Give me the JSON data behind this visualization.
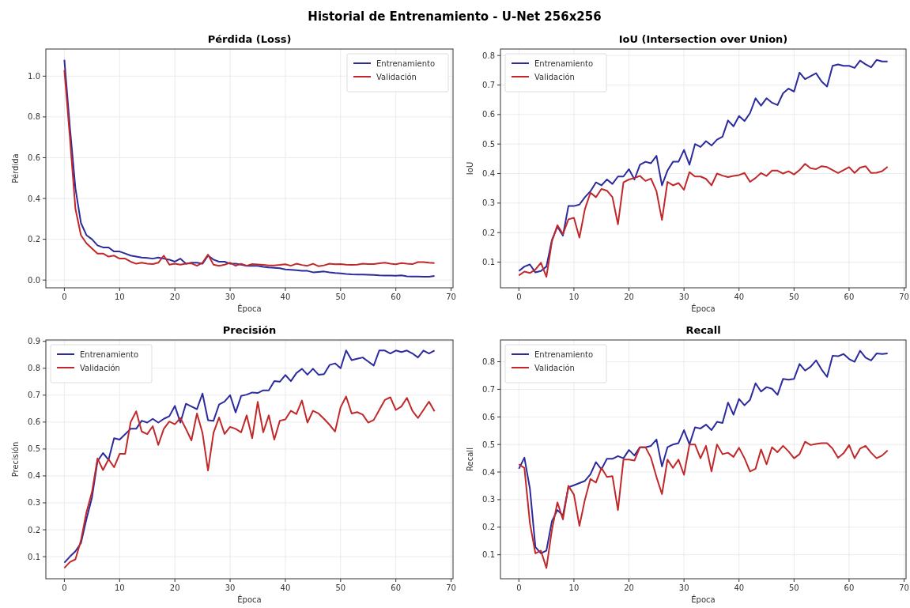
{
  "chart_data": [
    {
      "type": "line",
      "title": "Pérdida (Loss)",
      "annotations": [
        "Historial de Entrenamiento - U-Net 256x256"
      ],
      "xlabel": "Época",
      "ylabel": "Pérdida",
      "x": [
        0,
        1,
        2,
        3,
        4,
        5,
        6,
        7,
        8,
        9,
        10,
        11,
        12,
        13,
        14,
        15,
        16,
        17,
        18,
        19,
        20,
        21,
        22,
        23,
        24,
        25,
        26,
        27,
        28,
        29,
        30,
        31,
        32,
        33,
        34,
        35,
        36,
        37,
        38,
        39,
        40,
        41,
        42,
        43,
        44,
        45,
        46,
        47,
        48,
        49,
        50,
        51,
        52,
        53,
        54,
        55,
        56,
        57,
        58,
        59,
        60,
        61,
        62,
        63,
        64,
        65,
        66,
        67
      ],
      "xlim": [
        -3.35,
        70.35
      ],
      "xticks": [
        0,
        10,
        20,
        30,
        40,
        50,
        60,
        70
      ],
      "ylim": [
        -0.038,
        1.133
      ],
      "yticks": [
        {
          "value": 0,
          "label": "0.0"
        },
        0.2,
        0.4,
        0.6,
        0.8,
        {
          "value": 1,
          "label": "1.0"
        }
      ],
      "grid": true,
      "legend": "top right",
      "series": [
        {
          "name": "Entrenamiento",
          "color": "#2b2b9e",
          "values": [
            1.08,
            0.75,
            0.45,
            0.28,
            0.22,
            0.2,
            0.17,
            0.16,
            0.16,
            0.14,
            0.14,
            0.13,
            0.12,
            0.115,
            0.11,
            0.108,
            0.105,
            0.11,
            0.105,
            0.1,
            0.09,
            0.105,
            0.08,
            0.085,
            0.085,
            0.08,
            0.12,
            0.1,
            0.09,
            0.09,
            0.08,
            0.08,
            0.075,
            0.07,
            0.07,
            0.07,
            0.065,
            0.062,
            0.06,
            0.058,
            0.052,
            0.05,
            0.048,
            0.045,
            0.045,
            0.038,
            0.04,
            0.042,
            0.038,
            0.035,
            0.033,
            0.03,
            0.028,
            0.027,
            0.027,
            0.026,
            0.025,
            0.023,
            0.022,
            0.022,
            0.021,
            0.023,
            0.018,
            0.017,
            0.017,
            0.016,
            0.016,
            0.02
          ]
        },
        {
          "name": "Validación",
          "color": "#c0282a",
          "values": [
            1.03,
            0.7,
            0.35,
            0.22,
            0.18,
            0.155,
            0.13,
            0.13,
            0.115,
            0.12,
            0.105,
            0.105,
            0.09,
            0.08,
            0.085,
            0.08,
            0.078,
            0.085,
            0.12,
            0.075,
            0.08,
            0.075,
            0.08,
            0.082,
            0.07,
            0.085,
            0.125,
            0.075,
            0.07,
            0.075,
            0.085,
            0.07,
            0.08,
            0.07,
            0.078,
            0.076,
            0.074,
            0.072,
            0.072,
            0.074,
            0.077,
            0.07,
            0.08,
            0.074,
            0.07,
            0.08,
            0.068,
            0.072,
            0.08,
            0.077,
            0.078,
            0.075,
            0.074,
            0.075,
            0.08,
            0.078,
            0.078,
            0.082,
            0.085,
            0.08,
            0.077,
            0.083,
            0.08,
            0.078,
            0.088,
            0.088,
            0.085,
            0.083
          ]
        }
      ]
    },
    {
      "type": "line",
      "title": "IoU (Intersection over Union)",
      "xlabel": "Época",
      "ylabel": "IoU",
      "x": [
        0,
        1,
        2,
        3,
        4,
        5,
        6,
        7,
        8,
        9,
        10,
        11,
        12,
        13,
        14,
        15,
        16,
        17,
        18,
        19,
        20,
        21,
        22,
        23,
        24,
        25,
        26,
        27,
        28,
        29,
        30,
        31,
        32,
        33,
        34,
        35,
        36,
        37,
        38,
        39,
        40,
        41,
        42,
        43,
        44,
        45,
        46,
        47,
        48,
        49,
        50,
        51,
        52,
        53,
        54,
        55,
        56,
        57,
        58,
        59,
        60,
        61,
        62,
        63,
        64,
        65,
        66,
        67
      ],
      "xlim": [
        -3.35,
        70.35
      ],
      "xticks": [
        0,
        10,
        20,
        30,
        40,
        50,
        60,
        70
      ],
      "ylim": [
        0.013,
        0.822
      ],
      "yticks": [
        0.1,
        0.2,
        0.3,
        0.4,
        0.5,
        0.6,
        0.7,
        0.8
      ],
      "grid": true,
      "legend": "top left",
      "series": [
        {
          "name": "Entrenamiento",
          "color": "#2b2b9e",
          "values": [
            0.07,
            0.085,
            0.092,
            0.065,
            0.07,
            0.085,
            0.175,
            0.22,
            0.19,
            0.29,
            0.29,
            0.295,
            0.32,
            0.34,
            0.37,
            0.36,
            0.38,
            0.365,
            0.39,
            0.39,
            0.415,
            0.38,
            0.43,
            0.44,
            0.435,
            0.46,
            0.36,
            0.41,
            0.44,
            0.44,
            0.48,
            0.43,
            0.5,
            0.49,
            0.51,
            0.495,
            0.515,
            0.525,
            0.58,
            0.56,
            0.595,
            0.578,
            0.605,
            0.655,
            0.63,
            0.655,
            0.64,
            0.632,
            0.672,
            0.688,
            0.678,
            0.742,
            0.72,
            0.73,
            0.74,
            0.712,
            0.695,
            0.765,
            0.77,
            0.765,
            0.765,
            0.758,
            0.783,
            0.77,
            0.76,
            0.785,
            0.78,
            0.78
          ]
        },
        {
          "name": "Validación",
          "color": "#c0282a",
          "values": [
            0.055,
            0.068,
            0.063,
            0.075,
            0.098,
            0.05,
            0.17,
            0.225,
            0.195,
            0.245,
            0.25,
            0.183,
            0.28,
            0.335,
            0.32,
            0.348,
            0.342,
            0.32,
            0.228,
            0.37,
            0.38,
            0.385,
            0.392,
            0.375,
            0.383,
            0.34,
            0.243,
            0.372,
            0.36,
            0.368,
            0.345,
            0.405,
            0.39,
            0.39,
            0.382,
            0.36,
            0.4,
            0.393,
            0.388,
            0.392,
            0.395,
            0.402,
            0.372,
            0.385,
            0.402,
            0.392,
            0.41,
            0.41,
            0.4,
            0.408,
            0.397,
            0.412,
            0.433,
            0.418,
            0.415,
            0.425,
            0.422,
            0.412,
            0.402,
            0.412,
            0.422,
            0.402,
            0.42,
            0.425,
            0.402,
            0.403,
            0.408,
            0.423
          ]
        }
      ]
    },
    {
      "type": "line",
      "title": "Precisión",
      "xlabel": "Época",
      "ylabel": "Precisión",
      "x": [
        0,
        1,
        2,
        3,
        4,
        5,
        6,
        7,
        8,
        9,
        10,
        11,
        12,
        13,
        14,
        15,
        16,
        17,
        18,
        19,
        20,
        21,
        22,
        23,
        24,
        25,
        26,
        27,
        28,
        29,
        30,
        31,
        32,
        33,
        34,
        35,
        36,
        37,
        38,
        39,
        40,
        41,
        42,
        43,
        44,
        45,
        46,
        47,
        48,
        49,
        50,
        51,
        52,
        53,
        54,
        55,
        56,
        57,
        58,
        59,
        60,
        61,
        62,
        63,
        64,
        65,
        66,
        67
      ],
      "xlim": [
        -3.35,
        70.35
      ],
      "xticks": [
        0,
        10,
        20,
        30,
        40,
        50,
        60,
        70
      ],
      "ylim": [
        0.018,
        0.905
      ],
      "yticks": [
        0.1,
        0.2,
        0.3,
        0.4,
        0.5,
        0.6,
        0.7,
        0.8,
        0.9
      ],
      "grid": true,
      "legend": "top left",
      "series": [
        {
          "name": "Entrenamiento",
          "color": "#2b2b9e",
          "values": [
            0.078,
            0.1,
            0.12,
            0.15,
            0.24,
            0.32,
            0.455,
            0.485,
            0.46,
            0.54,
            0.535,
            0.555,
            0.575,
            0.575,
            0.605,
            0.598,
            0.612,
            0.598,
            0.612,
            0.622,
            0.66,
            0.598,
            0.668,
            0.658,
            0.648,
            0.706,
            0.607,
            0.605,
            0.665,
            0.676,
            0.7,
            0.636,
            0.697,
            0.702,
            0.71,
            0.708,
            0.718,
            0.718,
            0.752,
            0.75,
            0.775,
            0.752,
            0.782,
            0.798,
            0.776,
            0.798,
            0.776,
            0.778,
            0.812,
            0.818,
            0.8,
            0.866,
            0.83,
            0.835,
            0.84,
            0.825,
            0.81,
            0.866,
            0.866,
            0.855,
            0.866,
            0.86,
            0.866,
            0.855,
            0.84,
            0.866,
            0.855,
            0.866
          ]
        },
        {
          "name": "Validación",
          "color": "#c0282a",
          "values": [
            0.058,
            0.08,
            0.09,
            0.16,
            0.265,
            0.34,
            0.465,
            0.422,
            0.462,
            0.432,
            0.482,
            0.482,
            0.6,
            0.64,
            0.565,
            0.555,
            0.585,
            0.515,
            0.575,
            0.602,
            0.592,
            0.615,
            0.575,
            0.532,
            0.632,
            0.56,
            0.42,
            0.56,
            0.617,
            0.556,
            0.582,
            0.575,
            0.562,
            0.625,
            0.54,
            0.675,
            0.562,
            0.625,
            0.535,
            0.605,
            0.61,
            0.642,
            0.63,
            0.68,
            0.598,
            0.642,
            0.632,
            0.612,
            0.59,
            0.565,
            0.655,
            0.695,
            0.632,
            0.637,
            0.628,
            0.598,
            0.608,
            0.645,
            0.682,
            0.692,
            0.645,
            0.658,
            0.69,
            0.642,
            0.615,
            0.645,
            0.676,
            0.64
          ]
        }
      ]
    },
    {
      "type": "line",
      "title": "Recall",
      "xlabel": "Época",
      "ylabel": "Recall",
      "x": [
        0,
        1,
        2,
        3,
        4,
        5,
        6,
        7,
        8,
        9,
        10,
        11,
        12,
        13,
        14,
        15,
        16,
        17,
        18,
        19,
        20,
        21,
        22,
        23,
        24,
        25,
        26,
        27,
        28,
        29,
        30,
        31,
        32,
        33,
        34,
        35,
        36,
        37,
        38,
        39,
        40,
        41,
        42,
        43,
        44,
        45,
        46,
        47,
        48,
        49,
        50,
        51,
        52,
        53,
        54,
        55,
        56,
        57,
        58,
        59,
        60,
        61,
        62,
        63,
        64,
        65,
        66,
        67
      ],
      "xlim": [
        -3.35,
        70.35
      ],
      "xticks": [
        0,
        10,
        20,
        30,
        40,
        50,
        60,
        70
      ],
      "ylim": [
        0.013,
        0.879
      ],
      "yticks": [
        0.1,
        0.2,
        0.3,
        0.4,
        0.5,
        0.6,
        0.7,
        0.8
      ],
      "grid": true,
      "legend": "top left",
      "series": [
        {
          "name": "Entrenamiento",
          "color": "#2b2b9e",
          "values": [
            0.412,
            0.452,
            0.34,
            0.128,
            0.105,
            0.115,
            0.222,
            0.262,
            0.242,
            0.345,
            0.352,
            0.36,
            0.368,
            0.392,
            0.436,
            0.41,
            0.448,
            0.448,
            0.458,
            0.45,
            0.48,
            0.46,
            0.49,
            0.49,
            0.495,
            0.518,
            0.42,
            0.49,
            0.5,
            0.505,
            0.552,
            0.5,
            0.562,
            0.558,
            0.572,
            0.552,
            0.582,
            0.578,
            0.652,
            0.608,
            0.665,
            0.642,
            0.662,
            0.722,
            0.692,
            0.708,
            0.702,
            0.68,
            0.738,
            0.735,
            0.738,
            0.792,
            0.768,
            0.782,
            0.805,
            0.772,
            0.745,
            0.822,
            0.82,
            0.828,
            0.81,
            0.8,
            0.84,
            0.815,
            0.805,
            0.83,
            0.828,
            0.83
          ]
        },
        {
          "name": "Validación",
          "color": "#c0282a",
          "values": [
            0.428,
            0.415,
            0.215,
            0.105,
            0.115,
            0.052,
            0.19,
            0.29,
            0.228,
            0.35,
            0.318,
            0.205,
            0.3,
            0.375,
            0.362,
            0.415,
            0.382,
            0.385,
            0.262,
            0.445,
            0.445,
            0.442,
            0.49,
            0.49,
            0.452,
            0.382,
            0.32,
            0.445,
            0.415,
            0.445,
            0.39,
            0.5,
            0.5,
            0.45,
            0.495,
            0.402,
            0.5,
            0.465,
            0.47,
            0.455,
            0.488,
            0.45,
            0.402,
            0.412,
            0.482,
            0.428,
            0.49,
            0.472,
            0.495,
            0.475,
            0.45,
            0.465,
            0.51,
            0.498,
            0.502,
            0.505,
            0.505,
            0.485,
            0.452,
            0.468,
            0.498,
            0.45,
            0.485,
            0.495,
            0.47,
            0.45,
            0.46,
            0.478
          ]
        }
      ]
    }
  ]
}
